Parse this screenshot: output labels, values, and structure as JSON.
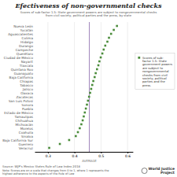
{
  "chart_data": {
    "type": "dot",
    "orientation": "horizontal",
    "title": "Efectiveness of non-governmental checks",
    "subtitle": [
      "Scores of sub-factor 1.5: State government powers are subject to nongovernmental checks",
      "from civil society, political parties and the press, by state"
    ],
    "categories": [
      "Nueva León",
      "Yucatán",
      "Aguascalientes",
      "Colima",
      "Hidalgo",
      "Durango",
      "Campeche",
      "Querétaro",
      "Ciudad de México",
      "Nayarit",
      "Tlaxcala",
      "Quintana Roo",
      "Guanajuato",
      "Baja California",
      "Chiapas",
      "Tabasco",
      "Jalisco",
      "Oaxaca",
      "Zacatecas",
      "San Luis Potosí",
      "Sonora",
      "Puebla",
      "Estado de México",
      "Tamaulipas",
      "Chihuahua",
      "Michoacán",
      "Morelos",
      "Coahuila",
      "Sinaloa",
      "Baja California Sur",
      "Guerrero",
      "Veracruz"
    ],
    "series": [
      {
        "name": "Scores of sub-\nfactor 1.5: State\ngovernment powers\nare subject to\nnongovernmental\nchecks from civil\nsociety, political\nparties and the\npress.",
        "color": "#4a8c3a",
        "marker": "square",
        "values": [
          0.56,
          0.548,
          0.538,
          0.53,
          0.524,
          0.516,
          0.51,
          0.505,
          0.499,
          0.494,
          0.49,
          0.485,
          0.48,
          0.476,
          0.471,
          0.467,
          0.463,
          0.459,
          0.455,
          0.451,
          0.447,
          0.443,
          0.439,
          0.435,
          0.431,
          0.426,
          0.42,
          0.413,
          0.405,
          0.38,
          0.345,
          0.305
        ]
      }
    ],
    "xlim": [
      0.25,
      0.62
    ],
    "xticks": [
      0.3,
      0.4,
      0.5,
      0.6
    ],
    "grid": true,
    "legend": "right",
    "annotations": [
      {
        "x": 0.456,
        "text": "AVERAGE",
        "color": "#8866aa"
      }
    ],
    "source": "Source: WJP's Mexico States Rule of Law Index 2018",
    "note": "Note: Scores are on a scale that changes from 0 to 1, where 1 represents the\nhighest adherence to the aspects of the Rule of Law",
    "logo": "World Justice\nProject"
  }
}
